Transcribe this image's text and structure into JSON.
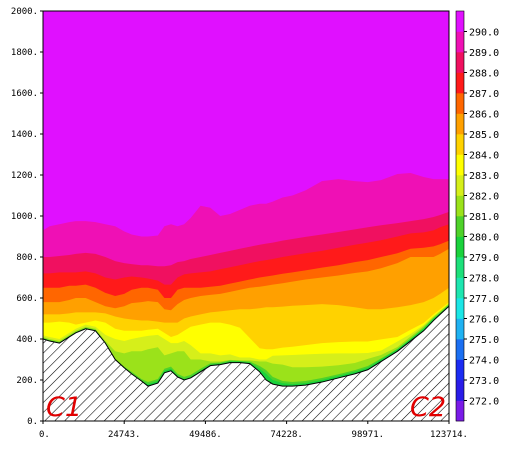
{
  "chart_data": {
    "type": "contour",
    "xlim": [
      0,
      123714
    ],
    "ylim": [
      0,
      2000
    ],
    "x_ticks": [
      "0.",
      "24743.",
      "49486.",
      "74228.",
      "98971.",
      "123714."
    ],
    "y_ticks": [
      "0.",
      "200.",
      "400.",
      "600.",
      "800.",
      "1000.",
      "1200.",
      "1400.",
      "1600.",
      "1800.",
      "2000."
    ],
    "colorbar": {
      "labels": [
        "272.0",
        "273.0",
        "274.0",
        "275.0",
        "276.0",
        "277.0",
        "278.0",
        "279.0",
        "280.0",
        "281.0",
        "282.0",
        "283.0",
        "284.0",
        "285.0",
        "286.0",
        "287.0",
        "288.0",
        "289.0",
        "290.0"
      ],
      "colors": [
        "#7a1be8",
        "#2a1ce8",
        "#1b2cf2",
        "#1b6ff2",
        "#1fb2f2",
        "#1be6e6",
        "#1de6b0",
        "#1ce07a",
        "#1ad23c",
        "#4ed22a",
        "#9be21a",
        "#d6ef1a",
        "#ffff00",
        "#ffd200",
        "#ffa000",
        "#ff6600",
        "#ff1a1a",
        "#f01060",
        "#ef10b5",
        "#e010ff"
      ]
    },
    "corner_labels": {
      "left": "C1",
      "right": "C2"
    },
    "terrain": {
      "x": [
        0,
        2000,
        5000,
        8000,
        10000,
        13000,
        16000,
        19000,
        22000,
        24743,
        27000,
        30000,
        32000,
        35000,
        37000,
        39000,
        41000,
        43000,
        45000,
        48000,
        51000,
        54000,
        57000,
        60000,
        63000,
        66000,
        68000,
        70000,
        73000,
        76000,
        80000,
        85000,
        90000,
        95000,
        98971,
        103000,
        108000,
        112000,
        116000,
        119000,
        121000,
        123714
      ],
      "y": [
        400,
        390,
        380,
        410,
        430,
        450,
        440,
        380,
        300,
        260,
        230,
        195,
        170,
        185,
        235,
        245,
        215,
        200,
        210,
        240,
        270,
        275,
        285,
        285,
        280,
        240,
        200,
        180,
        170,
        170,
        175,
        190,
        210,
        230,
        250,
        290,
        340,
        390,
        440,
        490,
        520,
        560
      ]
    },
    "contour_levels": [
      {
        "level": 280.0,
        "color": "#1ad23c",
        "y": [
          400,
          390,
          380,
          410,
          430,
          450,
          440,
          380,
          300,
          260,
          230,
          195,
          180,
          195,
          245,
          255,
          220,
          205,
          215,
          245,
          275,
          280,
          290,
          290,
          285,
          255,
          230,
          200,
          185,
          180,
          185,
          200,
          220,
          240,
          260,
          300,
          350,
          400,
          450,
          500,
          525,
          565
        ]
      },
      {
        "level": 281.0,
        "color": "#4ed22a",
        "y": [
          405,
          395,
          385,
          415,
          435,
          455,
          445,
          385,
          305,
          265,
          240,
          205,
          190,
          205,
          255,
          265,
          230,
          215,
          225,
          255,
          282,
          285,
          295,
          293,
          290,
          268,
          248,
          215,
          195,
          190,
          195,
          210,
          228,
          248,
          268,
          305,
          352,
          402,
          455,
          502,
          528,
          568
        ]
      },
      {
        "level": 282.0,
        "color": "#9be21a",
        "y": [
          410,
          400,
          390,
          420,
          440,
          460,
          450,
          390,
          340,
          330,
          340,
          340,
          350,
          360,
          320,
          330,
          340,
          340,
          300,
          300,
          290,
          290,
          298,
          296,
          296,
          290,
          290,
          280,
          275,
          262,
          262,
          265,
          272,
          283,
          303,
          322,
          361,
          412,
          462,
          508,
          535,
          572
        ]
      },
      {
        "level": 283.0,
        "color": "#d6ef1a",
        "y": [
          418,
          410,
          400,
          430,
          450,
          470,
          460,
          420,
          400,
          390,
          400,
          410,
          415,
          420,
          400,
          380,
          380,
          390,
          370,
          330,
          330,
          320,
          325,
          310,
          310,
          300,
          300,
          318,
          320,
          322,
          325,
          328,
          330,
          330,
          332,
          343,
          388,
          425,
          468,
          512,
          538,
          575
        ]
      },
      {
        "level": 284.0,
        "color": "#ffff00",
        "y": [
          480,
          480,
          485,
          480,
          470,
          480,
          490,
          480,
          450,
          440,
          440,
          440,
          445,
          450,
          430,
          410,
          420,
          440,
          460,
          470,
          480,
          480,
          470,
          455,
          405,
          355,
          350,
          350,
          358,
          362,
          370,
          380,
          385,
          388,
          388,
          398,
          410,
          445,
          478,
          520,
          545,
          580
        ]
      },
      {
        "level": 285.0,
        "color": "#ffd200",
        "y": [
          520,
          520,
          520,
          525,
          530,
          530,
          530,
          525,
          510,
          500,
          495,
          490,
          490,
          485,
          480,
          480,
          480,
          500,
          510,
          520,
          530,
          535,
          540,
          545,
          545,
          550,
          555,
          555,
          558,
          562,
          565,
          570,
          565,
          555,
          545,
          545,
          555,
          565,
          580,
          600,
          620,
          650
        ]
      },
      {
        "level": 286.0,
        "color": "#ffa000",
        "y": [
          580,
          580,
          580,
          590,
          600,
          600,
          580,
          560,
          550,
          560,
          575,
          580,
          585,
          580,
          545,
          540,
          570,
          590,
          600,
          610,
          615,
          620,
          630,
          640,
          650,
          655,
          660,
          665,
          672,
          680,
          690,
          700,
          710,
          722,
          730,
          745,
          770,
          800,
          800,
          800,
          815,
          840
        ]
      },
      {
        "level": 287.0,
        "color": "#ff6600",
        "y": [
          650,
          650,
          650,
          660,
          660,
          665,
          650,
          625,
          610,
          620,
          640,
          650,
          650,
          640,
          600,
          600,
          640,
          650,
          650,
          650,
          655,
          660,
          670,
          680,
          690,
          700,
          705,
          710,
          718,
          725,
          735,
          748,
          760,
          775,
          785,
          800,
          818,
          840,
          845,
          852,
          862,
          880
        ]
      },
      {
        "level": 288.0,
        "color": "#ff1a1a",
        "y": [
          720,
          720,
          725,
          725,
          725,
          730,
          720,
          700,
          690,
          700,
          705,
          700,
          695,
          685,
          665,
          665,
          700,
          715,
          720,
          725,
          730,
          740,
          750,
          760,
          770,
          780,
          785,
          790,
          800,
          808,
          818,
          830,
          845,
          860,
          870,
          882,
          900,
          915,
          920,
          930,
          945,
          960
        ]
      },
      {
        "level": 289.0,
        "color": "#f01060",
        "y": [
          800,
          800,
          805,
          810,
          815,
          820,
          815,
          800,
          780,
          770,
          765,
          760,
          760,
          755,
          755,
          760,
          775,
          780,
          790,
          800,
          810,
          820,
          830,
          840,
          850,
          860,
          865,
          870,
          880,
          888,
          898,
          910,
          922,
          935,
          945,
          955,
          965,
          975,
          985,
          995,
          1005,
          1020
        ]
      },
      {
        "level": 290.0,
        "color": "#ef10b5",
        "y": [
          930,
          950,
          960,
          970,
          975,
          975,
          970,
          960,
          950,
          925,
          910,
          900,
          900,
          905,
          950,
          960,
          950,
          960,
          990,
          1050,
          1040,
          1000,
          1010,
          1030,
          1050,
          1060,
          1060,
          1070,
          1090,
          1100,
          1125,
          1170,
          1180,
          1170,
          1165,
          1175,
          1205,
          1210,
          1190,
          1180,
          1180,
          1180
        ]
      }
    ],
    "background_color": "#e010ff"
  }
}
